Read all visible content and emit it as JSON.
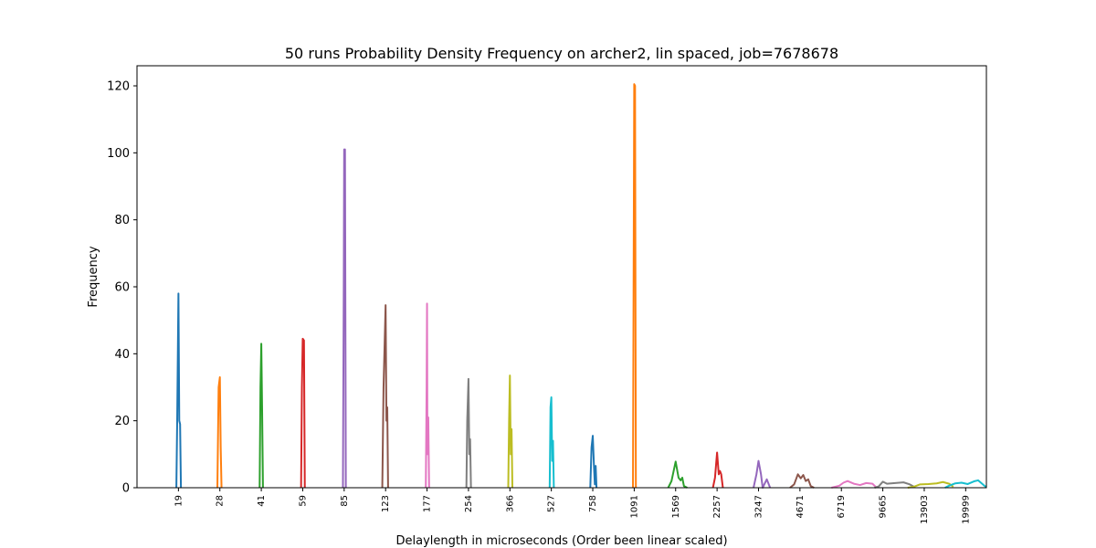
{
  "chart_data": {
    "type": "line",
    "title": "50 runs Probability Density Frequency on archer2, lin spaced, job=7678678",
    "xlabel": "Delaylength in microseconds (Order been linear scaled)",
    "ylabel": "Frequency",
    "ylim": [
      0,
      126
    ],
    "yticks": [
      0,
      20,
      40,
      60,
      80,
      100,
      120
    ],
    "xlim": [
      -1.0,
      19.5
    ],
    "grid": false,
    "categories": [
      "19",
      "28",
      "41",
      "59",
      "85",
      "123",
      "177",
      "254",
      "366",
      "527",
      "758",
      "1091",
      "1569",
      "2257",
      "3247",
      "4671",
      "6719",
      "9665",
      "13903",
      "19999"
    ],
    "series": [
      {
        "color": "#1f77b4",
        "points": [
          [
            -0.05,
            0
          ],
          [
            -0.03,
            20
          ],
          [
            0,
            58
          ],
          [
            0.02,
            20
          ],
          [
            0.04,
            19
          ],
          [
            0.06,
            0
          ]
        ]
      },
      {
        "color": "#ff7f0e",
        "points": [
          [
            0.94,
            0
          ],
          [
            0.97,
            30
          ],
          [
            1,
            33
          ],
          [
            1.02,
            12
          ],
          [
            1.04,
            0
          ]
        ]
      },
      {
        "color": "#2ca02c",
        "points": [
          [
            1.96,
            0
          ],
          [
            1.98,
            30
          ],
          [
            2,
            43
          ],
          [
            2.02,
            23
          ],
          [
            2.04,
            0
          ]
        ]
      },
      {
        "color": "#d62728",
        "points": [
          [
            2.96,
            0
          ],
          [
            2.98,
            30
          ],
          [
            3,
            44.5
          ],
          [
            3.03,
            44
          ],
          [
            3.05,
            0
          ]
        ]
      },
      {
        "color": "#9467bd",
        "points": [
          [
            3.97,
            0
          ],
          [
            3.99,
            60
          ],
          [
            4,
            101
          ],
          [
            4.02,
            101
          ],
          [
            4.04,
            0
          ]
        ]
      },
      {
        "color": "#8c564b",
        "points": [
          [
            4.92,
            0
          ],
          [
            4.95,
            30
          ],
          [
            5,
            54.5
          ],
          [
            5.02,
            20
          ],
          [
            5.04,
            24
          ],
          [
            5.06,
            0
          ]
        ]
      },
      {
        "color": "#e377c2",
        "points": [
          [
            5.97,
            0
          ],
          [
            5.99,
            30
          ],
          [
            6,
            55
          ],
          [
            6.01,
            10
          ],
          [
            6.03,
            21
          ],
          [
            6.05,
            0
          ]
        ]
      },
      {
        "color": "#7f7f7f",
        "points": [
          [
            6.95,
            0
          ],
          [
            6.97,
            20
          ],
          [
            7,
            32.5
          ],
          [
            7.02,
            10
          ],
          [
            7.04,
            14.5
          ],
          [
            7.06,
            0
          ]
        ]
      },
      {
        "color": "#bcbd22",
        "points": [
          [
            7.96,
            0
          ],
          [
            7.98,
            20
          ],
          [
            8,
            33.5
          ],
          [
            8.02,
            10
          ],
          [
            8.04,
            17.5
          ],
          [
            8.06,
            0
          ]
        ]
      },
      {
        "color": "#17becf",
        "points": [
          [
            8.96,
            0
          ],
          [
            8.98,
            24
          ],
          [
            9,
            27
          ],
          [
            9.02,
            8
          ],
          [
            9.04,
            14
          ],
          [
            9.06,
            0
          ]
        ]
      },
      {
        "color": "#1f77b4",
        "points": [
          [
            9.94,
            0
          ],
          [
            9.97,
            12
          ],
          [
            10,
            15.5
          ],
          [
            10.03,
            6
          ],
          [
            10.05,
            1
          ],
          [
            10.07,
            6.5
          ],
          [
            10.09,
            0
          ]
        ]
      },
      {
        "color": "#ff7f0e",
        "points": [
          [
            10.97,
            0
          ],
          [
            10.99,
            80
          ],
          [
            11,
            120.5
          ],
          [
            11.02,
            120
          ],
          [
            11.04,
            0
          ]
        ]
      },
      {
        "color": "#2ca02c",
        "points": [
          [
            11.82,
            0
          ],
          [
            11.9,
            2
          ],
          [
            12,
            7.8
          ],
          [
            12.07,
            3
          ],
          [
            12.12,
            2.2
          ],
          [
            12.16,
            3
          ],
          [
            12.2,
            0.5
          ],
          [
            12.28,
            0
          ]
        ]
      },
      {
        "color": "#d62728",
        "points": [
          [
            12.9,
            0
          ],
          [
            12.95,
            3
          ],
          [
            13,
            10.5
          ],
          [
            13.04,
            4
          ],
          [
            13.07,
            5
          ],
          [
            13.1,
            4
          ],
          [
            13.14,
            0
          ]
        ]
      },
      {
        "color": "#9467bd",
        "points": [
          [
            13.88,
            0
          ],
          [
            13.95,
            4
          ],
          [
            14,
            8
          ],
          [
            14.06,
            4
          ],
          [
            14.1,
            0
          ],
          [
            14.2,
            2.5
          ],
          [
            14.28,
            0
          ]
        ]
      },
      {
        "color": "#8c564b",
        "points": [
          [
            14.76,
            0
          ],
          [
            14.86,
            1
          ],
          [
            14.95,
            4
          ],
          [
            15.02,
            2.8
          ],
          [
            15.08,
            3.8
          ],
          [
            15.14,
            2
          ],
          [
            15.2,
            2.5
          ],
          [
            15.26,
            0.5
          ],
          [
            15.34,
            0
          ]
        ]
      },
      {
        "color": "#e377c2",
        "points": [
          [
            15.76,
            0
          ],
          [
            15.95,
            0.6
          ],
          [
            16.05,
            1.5
          ],
          [
            16.15,
            2
          ],
          [
            16.3,
            1.2
          ],
          [
            16.45,
            0.8
          ],
          [
            16.6,
            1.4
          ],
          [
            16.75,
            1.2
          ],
          [
            16.85,
            0
          ]
        ]
      },
      {
        "color": "#7f7f7f",
        "points": [
          [
            16.8,
            0
          ],
          [
            16.9,
            0.4
          ],
          [
            17.0,
            1.8
          ],
          [
            17.1,
            1.2
          ],
          [
            17.3,
            1.4
          ],
          [
            17.5,
            1.6
          ],
          [
            17.65,
            1.0
          ],
          [
            17.75,
            0.3
          ]
        ]
      },
      {
        "color": "#bcbd22",
        "points": [
          [
            17.6,
            0
          ],
          [
            17.75,
            0.3
          ],
          [
            17.9,
            1.0
          ],
          [
            18.1,
            1.1
          ],
          [
            18.3,
            1.3
          ],
          [
            18.45,
            1.7
          ],
          [
            18.6,
            1.2
          ],
          [
            18.7,
            0.3
          ]
        ]
      },
      {
        "color": "#17becf",
        "points": [
          [
            18.5,
            0
          ],
          [
            18.6,
            0.6
          ],
          [
            18.75,
            1.3
          ],
          [
            18.9,
            1.5
          ],
          [
            19.05,
            1.1
          ],
          [
            19.2,
            1.9
          ],
          [
            19.3,
            2.2
          ],
          [
            19.45,
            0.6
          ],
          [
            19.5,
            0.2
          ]
        ]
      }
    ]
  }
}
